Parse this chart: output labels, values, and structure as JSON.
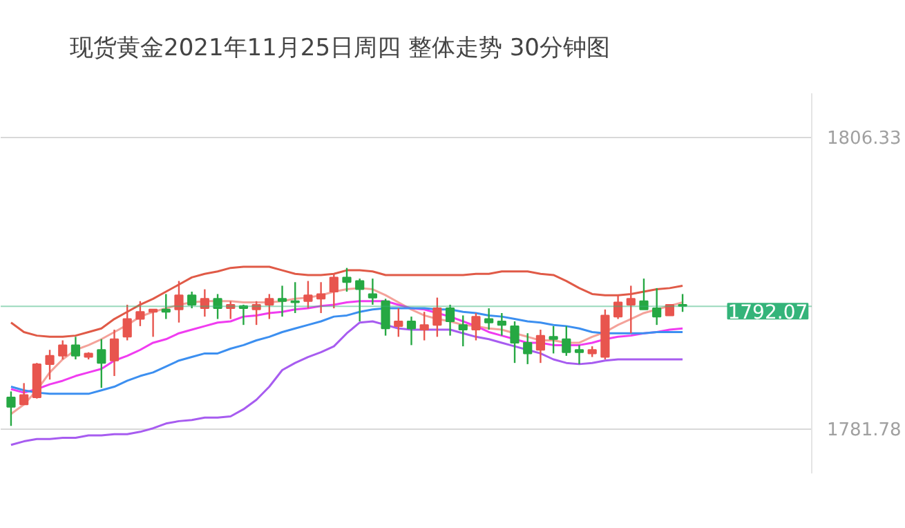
{
  "chart_data": {
    "type": "candlestick",
    "title": "现货黄金2021年11月25日周四 整体走势  30分钟图",
    "categories": [
      null,
      null,
      null,
      null,
      null,
      null,
      null,
      null,
      null,
      null,
      null,
      null,
      null,
      null,
      null,
      null,
      null,
      null,
      null,
      null,
      null,
      null,
      null,
      null,
      null,
      null,
      null,
      null,
      null,
      null,
      null,
      null,
      null,
      null,
      null,
      null,
      null,
      null,
      null,
      null,
      null,
      null,
      null,
      null,
      null,
      null,
      null,
      null,
      null,
      null,
      null,
      null,
      null
    ],
    "ohlc": [
      [
        1784.4,
        1784.9,
        1782.0,
        1783.6
      ],
      [
        1783.8,
        1785.6,
        1783.8,
        1784.6
      ],
      [
        1784.4,
        1787.3,
        1784.3,
        1787.2
      ],
      [
        1787.2,
        1788.4,
        1785.9,
        1787.9
      ],
      [
        1787.9,
        1789.2,
        1787.6,
        1788.8
      ],
      [
        1788.8,
        1789.5,
        1787.6,
        1787.9
      ],
      [
        1787.8,
        1788.2,
        1787.6,
        1788.1
      ],
      [
        1788.4,
        1789.3,
        1785.2,
        1787.3
      ],
      [
        1787.5,
        1790.1,
        1786.2,
        1789.3
      ],
      [
        1789.5,
        1792.2,
        1789.2,
        1791.0
      ],
      [
        1791.0,
        1792.5,
        1790.4,
        1791.6
      ],
      [
        1791.6,
        1791.8,
        1789.5,
        1791.8
      ],
      [
        1791.8,
        1793.1,
        1791.0,
        1791.6
      ],
      [
        1791.8,
        1794.2,
        1790.7,
        1793.0
      ],
      [
        1793.0,
        1793.3,
        1791.9,
        1792.2
      ],
      [
        1791.9,
        1793.5,
        1791.2,
        1792.7
      ],
      [
        1792.7,
        1793.1,
        1791.0,
        1791.9
      ],
      [
        1791.9,
        1792.5,
        1791.0,
        1792.2
      ],
      [
        1792.1,
        1792.2,
        1790.5,
        1791.9
      ],
      [
        1791.8,
        1792.5,
        1790.5,
        1792.2
      ],
      [
        1792.2,
        1793.1,
        1791.0,
        1792.7
      ],
      [
        1792.7,
        1793.8,
        1791.2,
        1792.5
      ],
      [
        1792.5,
        1794.1,
        1791.5,
        1792.4
      ],
      [
        1792.5,
        1794.2,
        1791.9,
        1793.0
      ],
      [
        1792.7,
        1794.1,
        1791.5,
        1793.1
      ],
      [
        1793.3,
        1794.8,
        1791.9,
        1794.5
      ],
      [
        1794.5,
        1795.3,
        1793.3,
        1794.1
      ],
      [
        1794.2,
        1794.4,
        1790.8,
        1793.5
      ],
      [
        1793.1,
        1794.4,
        1792.2,
        1792.8
      ],
      [
        1792.5,
        1792.7,
        1789.6,
        1790.2
      ],
      [
        1790.4,
        1791.9,
        1789.5,
        1790.8
      ],
      [
        1790.8,
        1791.2,
        1788.8,
        1790.2
      ],
      [
        1790.1,
        1791.6,
        1789.2,
        1790.5
      ],
      [
        1790.5,
        1792.8,
        1789.5,
        1791.9
      ],
      [
        1791.9,
        1792.2,
        1789.6,
        1790.8
      ],
      [
        1790.5,
        1791.3,
        1788.7,
        1790.1
      ],
      [
        1790.1,
        1791.5,
        1789.2,
        1791.2
      ],
      [
        1791.0,
        1791.9,
        1790.1,
        1790.7
      ],
      [
        1790.8,
        1791.5,
        1789.6,
        1790.5
      ],
      [
        1790.4,
        1790.8,
        1787.3,
        1789.0
      ],
      [
        1789.0,
        1789.8,
        1787.2,
        1788.1
      ],
      [
        1788.4,
        1790.1,
        1787.3,
        1789.6
      ],
      [
        1789.5,
        1790.4,
        1788.1,
        1789.3
      ],
      [
        1789.3,
        1790.4,
        1787.9,
        1788.2
      ],
      [
        1788.4,
        1788.8,
        1787.2,
        1788.2
      ],
      [
        1788.1,
        1788.7,
        1787.8,
        1788.4
      ],
      [
        1787.8,
        1791.8,
        1787.6,
        1791.3
      ],
      [
        1791.2,
        1793.0,
        1791.0,
        1792.4
      ],
      [
        1792.2,
        1793.8,
        1789.8,
        1792.7
      ],
      [
        1792.5,
        1794.4,
        1791.8,
        1791.8
      ],
      [
        1791.9,
        1793.6,
        1790.5,
        1791.2
      ],
      [
        1791.3,
        1792.2,
        1791.3,
        1792.2
      ],
      [
        1792.2,
        1793.1,
        1791.6,
        1792.1
      ]
    ],
    "colors": [
      "#26a843",
      "#e8554e",
      "#e8554e",
      "#e8554e",
      "#e8554e",
      "#26a843",
      "#e8554e",
      "#26a843",
      "#e8554e",
      "#e8554e",
      "#e8554e",
      "#e8554e",
      "#26a843",
      "#e8554e",
      "#26a843",
      "#e8554e",
      "#26a843",
      "#e8554e",
      "#26a843",
      "#e8554e",
      "#e8554e",
      "#26a843",
      "#26a843",
      "#e8554e",
      "#e8554e",
      "#e8554e",
      "#26a843",
      "#26a843",
      "#26a843",
      "#26a843",
      "#e8554e",
      "#26a843",
      "#e8554e",
      "#e8554e",
      "#26a843",
      "#26a843",
      "#e8554e",
      "#26a843",
      "#26a843",
      "#26a843",
      "#26a843",
      "#e8554e",
      "#26a843",
      "#26a843",
      "#26a843",
      "#e8554e",
      "#e8554e",
      "#e8554e",
      "#e8554e",
      "#26a843",
      "#26a843",
      "#e8554e",
      "#26a843"
    ],
    "series": [
      {
        "type": "line",
        "color": "#e05a47",
        "values": [
          1790.7,
          1789.9,
          1789.6,
          1789.5,
          1789.5,
          1789.6,
          1789.9,
          1790.2,
          1791.0,
          1791.6,
          1792.2,
          1792.7,
          1793.3,
          1793.9,
          1794.5,
          1794.8,
          1795.0,
          1795.3,
          1795.4,
          1795.4,
          1795.4,
          1795.1,
          1794.8,
          1794.7,
          1794.7,
          1794.8,
          1795.1,
          1795.1,
          1795.0,
          1794.7,
          1794.7,
          1794.7,
          1794.7,
          1794.7,
          1794.7,
          1794.7,
          1794.8,
          1794.8,
          1795.0,
          1795.0,
          1795.0,
          1794.8,
          1794.7,
          1794.2,
          1793.6,
          1793.1,
          1793.0,
          1793.0,
          1793.1,
          1793.3,
          1793.5,
          1793.6,
          1793.8
        ]
      },
      {
        "type": "line",
        "color": "#f4a29a",
        "values": [
          1783.0,
          1783.8,
          1785.0,
          1786.5,
          1787.6,
          1788.4,
          1788.8,
          1789.3,
          1789.9,
          1790.5,
          1791.2,
          1791.6,
          1791.9,
          1792.2,
          1792.4,
          1792.5,
          1792.5,
          1792.5,
          1792.4,
          1792.4,
          1792.4,
          1792.5,
          1792.7,
          1792.8,
          1793.0,
          1793.3,
          1793.5,
          1793.6,
          1793.5,
          1793.0,
          1792.4,
          1791.8,
          1791.3,
          1791.0,
          1790.8,
          1790.5,
          1790.4,
          1790.2,
          1790.1,
          1789.8,
          1789.5,
          1789.2,
          1789.2,
          1789.0,
          1789.0,
          1789.5,
          1789.9,
          1790.5,
          1791.0,
          1791.5,
          1791.8,
          1792.1,
          1792.4
        ]
      },
      {
        "type": "line",
        "color": "#f03cf0",
        "values": [
          1785.1,
          1784.8,
          1785.1,
          1785.5,
          1785.8,
          1786.2,
          1786.5,
          1786.8,
          1787.5,
          1787.9,
          1788.4,
          1789.0,
          1789.3,
          1789.8,
          1790.1,
          1790.4,
          1790.7,
          1790.8,
          1791.2,
          1791.3,
          1791.5,
          1791.6,
          1791.8,
          1791.9,
          1792.1,
          1792.2,
          1792.4,
          1792.5,
          1792.5,
          1792.5,
          1792.2,
          1791.9,
          1791.8,
          1791.5,
          1791.2,
          1790.8,
          1790.4,
          1789.9,
          1789.6,
          1789.3,
          1789.0,
          1789.0,
          1788.8,
          1788.8,
          1788.8,
          1789.0,
          1789.3,
          1789.5,
          1789.6,
          1789.8,
          1789.9,
          1790.1,
          1790.2
        ]
      },
      {
        "type": "line",
        "color": "#3c8ff0",
        "values": [
          1785.3,
          1785.0,
          1784.8,
          1784.7,
          1784.7,
          1784.7,
          1784.7,
          1785.0,
          1785.3,
          1785.8,
          1786.2,
          1786.5,
          1787.0,
          1787.5,
          1787.8,
          1788.1,
          1788.1,
          1788.5,
          1788.8,
          1789.2,
          1789.5,
          1789.9,
          1790.2,
          1790.5,
          1790.8,
          1791.2,
          1791.3,
          1791.6,
          1791.8,
          1791.9,
          1791.9,
          1791.9,
          1791.9,
          1791.8,
          1791.8,
          1791.6,
          1791.5,
          1791.3,
          1791.2,
          1791.0,
          1790.8,
          1790.7,
          1790.5,
          1790.4,
          1790.2,
          1789.9,
          1789.8,
          1789.8,
          1789.8,
          1789.8,
          1789.9,
          1789.9,
          1789.9
        ]
      },
      {
        "type": "line",
        "color": "#a75cf0",
        "values": [
          1780.4,
          1780.7,
          1780.9,
          1780.9,
          1781.0,
          1781.0,
          1781.2,
          1781.2,
          1781.3,
          1781.3,
          1781.5,
          1781.8,
          1782.2,
          1782.4,
          1782.5,
          1782.7,
          1782.7,
          1782.8,
          1783.4,
          1784.2,
          1785.3,
          1786.7,
          1787.3,
          1787.8,
          1788.2,
          1788.7,
          1789.8,
          1790.7,
          1790.8,
          1790.5,
          1790.2,
          1790.1,
          1790.1,
          1790.1,
          1790.1,
          1789.8,
          1789.5,
          1789.3,
          1789.0,
          1788.7,
          1788.4,
          1788.1,
          1787.6,
          1787.3,
          1787.2,
          1787.3,
          1787.5,
          1787.6,
          1787.6,
          1787.6,
          1787.6,
          1787.6,
          1787.6
        ]
      }
    ],
    "ylim": [
      1778,
      1810
    ],
    "yticks": [
      1806.33,
      1781.78
    ],
    "grid": "y",
    "ref_lines": [
      {
        "axis": "y",
        "value": 1792.07,
        "label": "1792.07",
        "color": "#34b47a"
      }
    ]
  }
}
